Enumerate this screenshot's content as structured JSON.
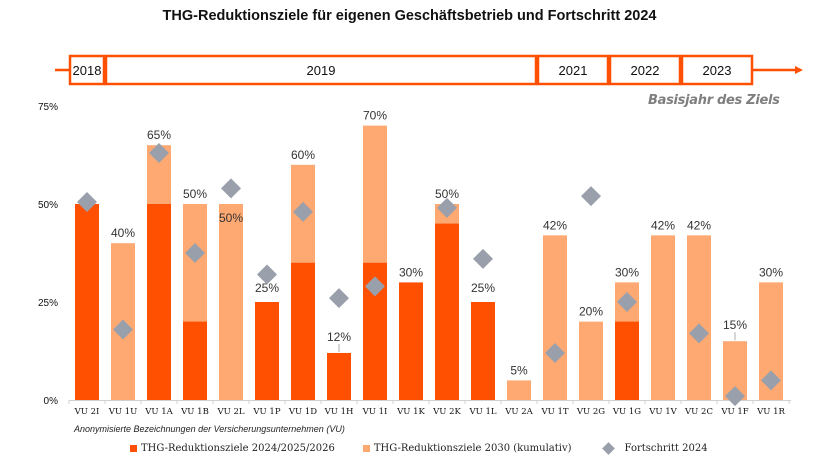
{
  "title": "THG-Reduktionsziele für eigenen Geschäftsbetrieb und Fortschritt 2024",
  "timeline": {
    "label": "Basisjahr des Ziels",
    "color": "#FE5000",
    "periods": [
      {
        "year": "2018",
        "from_category": "VU 2I",
        "to_category": "VU 2I"
      },
      {
        "year": "2019",
        "from_category": "VU 1U",
        "to_category": "VU 2A"
      },
      {
        "year": "2021",
        "from_category": "VU 1T",
        "to_category": "VU 2G"
      },
      {
        "year": "2022",
        "from_category": "VU 1G",
        "to_category": "VU 1V"
      },
      {
        "year": "2023",
        "from_category": "VU 2C",
        "to_category": "VU 1F"
      }
    ]
  },
  "colors": {
    "target_2024_2026": "#FE5000",
    "target_2030": "#FEA872",
    "progress_2024": "#9AA0AB",
    "axis": "#d0d0d0"
  },
  "chart_data": {
    "type": "bar",
    "title": "THG-Reduktionsziele für eigenen Geschäftsbetrieb und Fortschritt 2024",
    "xlabel": "Anonymisierte Bezeichnungen der Versicherungsunternehmen (VU)",
    "ylabel": "",
    "ylim": [
      0,
      75
    ],
    "yticks": [
      0,
      25,
      50,
      75
    ],
    "ytick_labels": [
      "0%",
      "25%",
      "50%",
      "75%"
    ],
    "grid": false,
    "legend_position": "bottom",
    "categories": [
      "VU 2I",
      "VU 1U",
      "VU 1A",
      "VU 1B",
      "VU 2L",
      "VU 1P",
      "VU 1D",
      "VU 1H",
      "VU 1I",
      "VU 1K",
      "VU 2K",
      "VU 1L",
      "VU 2A",
      "VU 1T",
      "VU 2G",
      "VU 1G",
      "VU 1V",
      "VU 2C",
      "VU 1F",
      "VU 1R"
    ],
    "series": [
      {
        "name": "THG-Reduktionsziele 2024/2025/2026",
        "kind": "bar",
        "values": [
          50,
          null,
          50,
          20,
          null,
          25,
          35,
          12,
          35,
          30,
          45,
          25,
          null,
          null,
          null,
          20,
          null,
          null,
          null,
          null
        ]
      },
      {
        "name": "THG-Reduktionsziele 2030 (kumulativ)",
        "kind": "bar",
        "values": [
          null,
          40,
          65,
          50,
          50,
          null,
          60,
          null,
          70,
          null,
          50,
          null,
          5,
          42,
          20,
          30,
          42,
          42,
          15,
          30
        ]
      },
      {
        "name": "Fortschritt 2024",
        "kind": "marker-diamond",
        "values": [
          50.5,
          18,
          63,
          37.5,
          54,
          32,
          48,
          26,
          29,
          null,
          49,
          36,
          null,
          12,
          52,
          25,
          null,
          17,
          1,
          5
        ]
      }
    ],
    "data_labels": [
      "",
      "40%",
      "65%",
      "50%",
      "50%",
      "25%",
      "60%",
      "12%",
      "70%",
      "30%",
      "50%",
      "25%",
      "5%",
      "42%",
      "20%",
      "30%",
      "42%",
      "42%",
      "15%",
      "30%"
    ]
  }
}
